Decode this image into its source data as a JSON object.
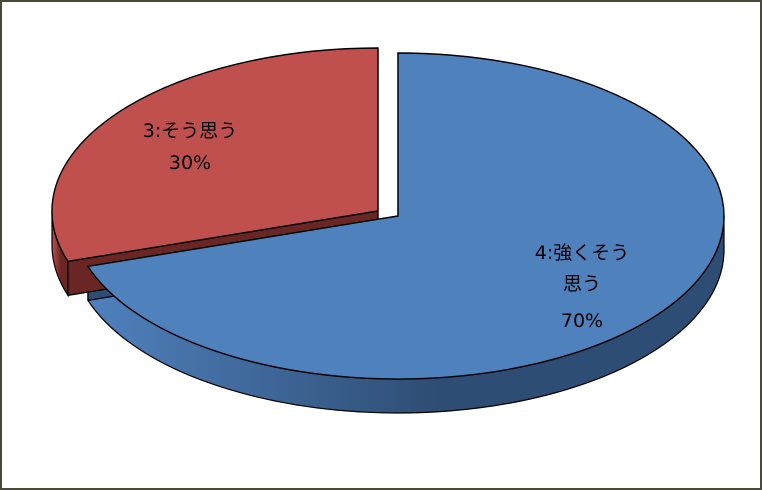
{
  "chart_data": {
    "type": "pie",
    "title": "",
    "slices": [
      {
        "category": "4:強くそう思う",
        "value": 70,
        "label": "70%",
        "color": "#4f81bd",
        "side_color": "#2e4d74",
        "label_lines": [
          "4:強くそう",
          "思う"
        ]
      },
      {
        "category": "3:そう思う",
        "value": 30,
        "label": "30%",
        "color": "#c0504d",
        "side_color": "#6a2624",
        "label_lines": [
          "3:そう思う"
        ]
      }
    ],
    "legend": "none",
    "exploded": true
  }
}
